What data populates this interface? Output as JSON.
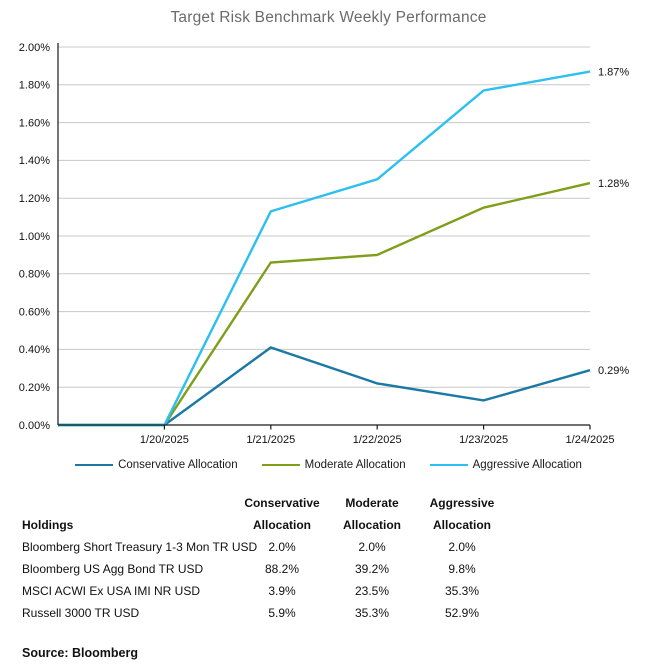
{
  "chart_data": {
    "type": "line",
    "title": "Target Risk Benchmark Weekly Performance",
    "x": [
      "",
      "1/20/2025",
      "1/21/2025",
      "1/22/2025",
      "1/23/2025",
      "1/24/2025"
    ],
    "series": [
      {
        "name": "Conservative Allocation",
        "color": "#1B79A5",
        "values": [
          0.0,
          0.0,
          0.41,
          0.22,
          0.13,
          0.29
        ],
        "end_label": "0.29%"
      },
      {
        "name": "Moderate Allocation",
        "color": "#7F9E19",
        "values": [
          0.0,
          0.0,
          0.86,
          0.9,
          1.15,
          1.28
        ],
        "end_label": "1.28%"
      },
      {
        "name": "Aggressive Allocation",
        "color": "#2BC0EF",
        "values": [
          0.0,
          0.0,
          1.13,
          1.3,
          1.77,
          1.87
        ],
        "end_label": "1.87%"
      }
    ],
    "ylim": [
      0,
      2
    ],
    "y_tick_step": 0.2,
    "y_tick_suffix": "%",
    "grid": true,
    "legend_position": "bottom"
  },
  "table": {
    "header": {
      "col0": "Holdings",
      "cols": [
        {
          "line1": "Conservative",
          "line2": "Allocation"
        },
        {
          "line1": "Moderate",
          "line2": "Allocation"
        },
        {
          "line1": "Aggressive",
          "line2": "Allocation"
        }
      ]
    },
    "rows": [
      {
        "holding": "Bloomberg Short Treasury 1-3 Mon TR USD",
        "values": [
          "2.0%",
          "2.0%",
          "2.0%"
        ]
      },
      {
        "holding": "Bloomberg US Agg Bond TR USD",
        "values": [
          "88.2%",
          "39.2%",
          "9.8%"
        ]
      },
      {
        "holding": "MSCI ACWI Ex USA IMI NR USD",
        "values": [
          "3.9%",
          "23.5%",
          "35.3%"
        ]
      },
      {
        "holding": "Russell 3000 TR USD",
        "values": [
          "5.9%",
          "35.3%",
          "52.9%"
        ]
      }
    ]
  },
  "source": "Source: Bloomberg",
  "colors": {
    "grid": "#C8C8C8",
    "axis": "#1A1A1A",
    "title": "#6B6B6B"
  }
}
